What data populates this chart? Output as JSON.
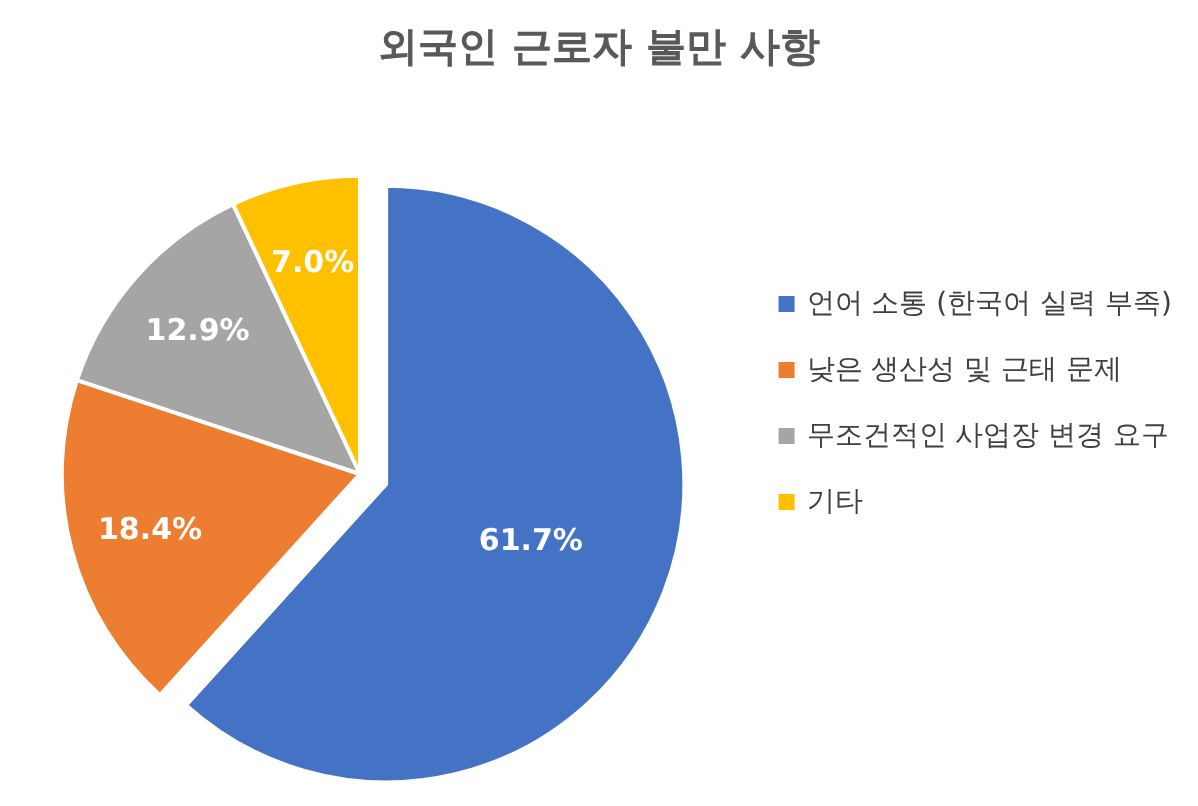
{
  "chart_data": {
    "type": "pie",
    "title": "외국인 근로자 불만 사항",
    "categories": [
      "언어 소통 (한국어 실력 부족)",
      "낮은 생산성 및 근태 문제",
      "무조건적인 사업장 변경 요구",
      "기타"
    ],
    "values": [
      61.7,
      18.4,
      12.9,
      7.0
    ],
    "value_labels": [
      "61.7%",
      "18.4%",
      "12.9%",
      "7.0%"
    ],
    "colors": [
      "#4472c4",
      "#ed7d31",
      "#a5a5a5",
      "#ffc000"
    ],
    "legend": "right"
  }
}
